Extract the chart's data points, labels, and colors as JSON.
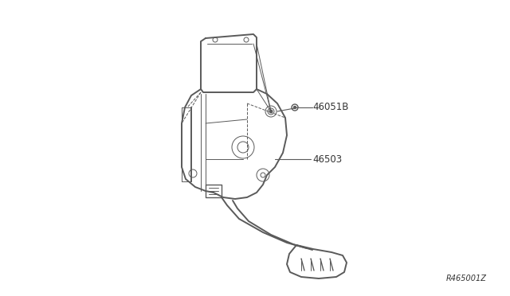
{
  "background_color": "#ffffff",
  "line_color": "#5a5a5a",
  "label_color": "#333333",
  "label_46051B": "46051B",
  "label_46503": "46503",
  "ref_code": "R465001Z",
  "figsize": [
    6.4,
    3.72
  ],
  "dpi": 100,
  "lw_main": 1.0,
  "lw_thin": 0.7,
  "lw_thick": 1.4
}
